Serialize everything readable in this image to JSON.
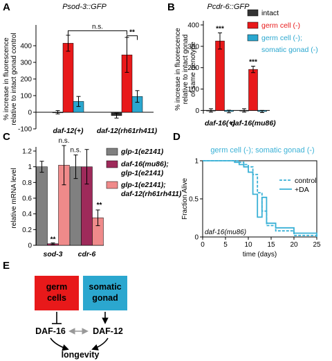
{
  "panels": {
    "A": "A",
    "B": "B",
    "C": "C",
    "D": "D",
    "E": "E"
  },
  "colors": {
    "intact": "#333333",
    "germ": "#e8191a",
    "germ_somatic": "#2ba7cf",
    "glp1": "#808080",
    "daf16_glp1": "#9e2a5a",
    "daf12_glp1": "#ef8a8a",
    "curve": "#3ab1d6"
  },
  "chart_data": [
    {
      "type": "bar",
      "title": "Psod-3::GFP",
      "ylabel": "% increase in fluorescence relative to intact gonad control",
      "ylabel_lines": [
        "% increase in fluorescence",
        "relative to intact gonad control"
      ],
      "ylim": [
        -100,
        500
      ],
      "yticks": [
        -100,
        0,
        100,
        200,
        300,
        400
      ],
      "categories": [
        "daf-12(+)",
        "daf-12(rh61rh411)"
      ],
      "series": [
        {
          "name": "intact",
          "values": [
            0,
            -20
          ],
          "errors": [
            10,
            15
          ]
        },
        {
          "name": "germ cell (-)",
          "values": [
            415,
            345
          ],
          "errors": [
            48,
            105
          ]
        },
        {
          "name": "germ cell (-); somatic gonad (-)",
          "values": [
            65,
            95
          ],
          "errors": [
            30,
            35
          ]
        }
      ],
      "annotations": [
        "n.s.",
        "**"
      ]
    },
    {
      "type": "bar",
      "title": "Pcdr-6::GFP",
      "ylabel": "% increase in fluorescence relative to intact gonad of same genotype",
      "ylabel_lines": [
        "% increase in fluorescence",
        "relative to intact gonad",
        "of same genotype"
      ],
      "ylim": [
        -15,
        400
      ],
      "yticks": [
        0,
        100,
        200,
        300,
        400
      ],
      "categories": [
        "daf-16(+)",
        "daf-16(mu86)"
      ],
      "series": [
        {
          "name": "intact",
          "values": [
            0,
            0
          ],
          "errors": [
            8,
            8
          ]
        },
        {
          "name": "germ cell (-)",
          "values": [
            325,
            192
          ],
          "errors": [
            38,
            15
          ]
        },
        {
          "name": "germ cell (-); somatic gonad (-)",
          "values": [
            -5,
            -5
          ],
          "errors": [
            6,
            5
          ]
        }
      ],
      "annotations": [
        "***",
        "***"
      ],
      "legend": [
        "intact",
        "germ cell (-)",
        "germ cell (-);",
        "somatic gonad (-)"
      ],
      "legend_position": "top-right"
    },
    {
      "type": "bar",
      "title": "",
      "ylabel": "relative mRNA level",
      "ylim": [
        0,
        1.2
      ],
      "yticks": [
        0,
        0.2,
        0.4,
        0.6,
        0.8,
        1,
        1.2
      ],
      "ytick_labels": [
        "0",
        "0.2",
        "0.4",
        "0.6",
        "0.8",
        "1",
        "1.2"
      ],
      "categories": [
        "sod-3",
        "cdr-6"
      ],
      "series": [
        {
          "name": "glp-1(e2141)",
          "values": [
            1.0,
            1.0
          ],
          "errors": [
            0.07,
            0.15
          ]
        },
        {
          "name": "daf-16(mu86); glp-1(e2141)",
          "values": [
            0.02,
            1.0
          ],
          "errors": [
            0.01,
            0.22
          ]
        },
        {
          "name": "glp-1(e2141); daf-12(rh61rh411)",
          "values": [
            1.02,
            0.35
          ],
          "errors": [
            0.25,
            0.1
          ]
        }
      ],
      "annotations": [
        "**",
        "n.s.",
        "n.s.",
        "**"
      ],
      "legend": [
        "glp-1(e2141)",
        "daf-16(mu86);",
        "glp-1(e2141)",
        "glp-1(e2141);",
        "daf-12(rh61rh411)"
      ],
      "legend_position": "top-right"
    },
    {
      "type": "line",
      "title": "germ cell (-); somatic gonad (-)",
      "xlabel": "time (days)",
      "ylabel": "Fraction Alive",
      "xlim": [
        0,
        25
      ],
      "ylim": [
        0,
        1
      ],
      "xticks": [
        0,
        5,
        10,
        15,
        20,
        25
      ],
      "yticks": [
        0,
        0.5,
        1
      ],
      "ytick_labels": [
        "0",
        "0.5",
        "1"
      ],
      "annotation": "daf-16(mu86)",
      "series": [
        {
          "name": "control",
          "style": "dashed",
          "x": [
            0,
            6,
            8,
            9,
            10,
            11,
            12,
            13,
            14,
            16,
            20,
            25
          ],
          "y": [
            1,
            1,
            0.98,
            0.95,
            0.92,
            0.82,
            0.58,
            0.34,
            0.15,
            0.08,
            0.02,
            0
          ]
        },
        {
          "name": "+DA",
          "style": "solid",
          "x": [
            0,
            7,
            8,
            9,
            10,
            11,
            12,
            13,
            14,
            16,
            20,
            25
          ],
          "y": [
            1,
            0.98,
            0.95,
            0.92,
            0.85,
            0.56,
            0.26,
            0.52,
            0.18,
            0.12,
            0.05,
            0
          ]
        }
      ],
      "legend_position": "top-right"
    }
  ],
  "diagram": {
    "germ_cells": [
      "germ",
      "cells"
    ],
    "somatic_gonad": [
      "somatic",
      "gonad"
    ],
    "daf16": "DAF-16",
    "daf12": "DAF-12",
    "longevity": "longevity"
  }
}
